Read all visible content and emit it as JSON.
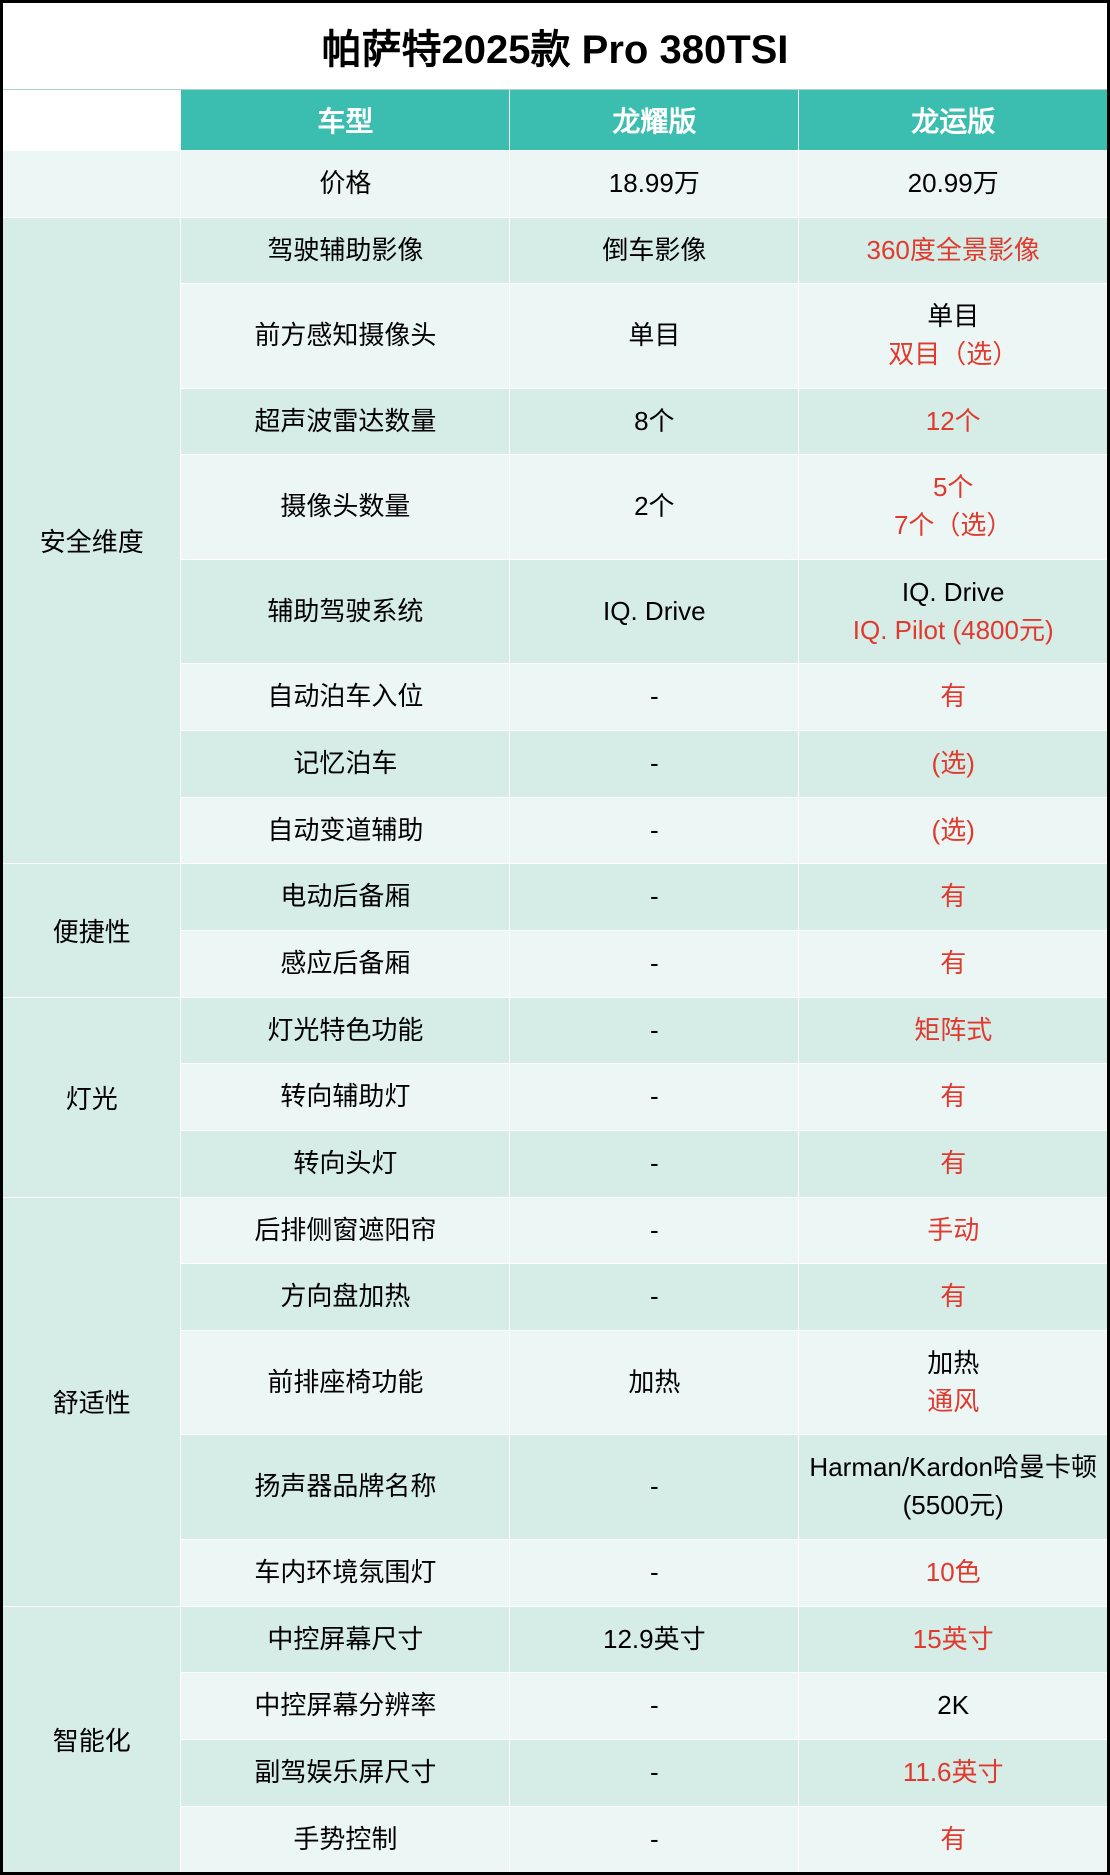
{
  "title": "帕萨特2025款 Pro 380TSI",
  "colors": {
    "header_bg": "#3bbeb0",
    "header_text": "#ffffff",
    "stripe_light": "#ecf6f4",
    "stripe_dark": "#d6ece7",
    "highlight_text": "#e03a2f",
    "border": "#000000"
  },
  "headers": {
    "category": "",
    "feature": "车型",
    "variant1": "龙耀版",
    "variant2": "龙运版"
  },
  "price_row": {
    "feature": "价格",
    "v1": [
      {
        "text": "18.99万",
        "highlight": false
      }
    ],
    "v2": [
      {
        "text": "20.99万",
        "highlight": false
      }
    ]
  },
  "sections": [
    {
      "category": "安全维度",
      "rows": [
        {
          "feature": "驾驶辅助影像",
          "v1": [
            {
              "text": "倒车影像",
              "highlight": false
            }
          ],
          "v2": [
            {
              "text": "360度全景影像",
              "highlight": true
            }
          ]
        },
        {
          "feature": "前方感知摄像头",
          "v1": [
            {
              "text": "单目",
              "highlight": false
            }
          ],
          "v2": [
            {
              "text": "单目",
              "highlight": false
            },
            {
              "text": "双目（选）",
              "highlight": true
            }
          ]
        },
        {
          "feature": "超声波雷达数量",
          "v1": [
            {
              "text": "8个",
              "highlight": false
            }
          ],
          "v2": [
            {
              "text": "12个",
              "highlight": true
            }
          ]
        },
        {
          "feature": "摄像头数量",
          "v1": [
            {
              "text": "2个",
              "highlight": false
            }
          ],
          "v2": [
            {
              "text": "5个",
              "highlight": true
            },
            {
              "text": "7个（选）",
              "highlight": true
            }
          ]
        },
        {
          "feature": "辅助驾驶系统",
          "v1": [
            {
              "text": "IQ. Drive",
              "highlight": false
            }
          ],
          "v2": [
            {
              "text": "IQ. Drive",
              "highlight": false
            },
            {
              "text": "IQ. Pilot (4800元)",
              "highlight": true
            }
          ]
        },
        {
          "feature": "自动泊车入位",
          "v1": [
            {
              "text": "-",
              "highlight": false
            }
          ],
          "v2": [
            {
              "text": "有",
              "highlight": true
            }
          ]
        },
        {
          "feature": "记忆泊车",
          "v1": [
            {
              "text": "-",
              "highlight": false
            }
          ],
          "v2": [
            {
              "text": "(选)",
              "highlight": true
            }
          ]
        },
        {
          "feature": "自动变道辅助",
          "v1": [
            {
              "text": "-",
              "highlight": false
            }
          ],
          "v2": [
            {
              "text": "(选)",
              "highlight": true
            }
          ]
        }
      ]
    },
    {
      "category": "便捷性",
      "rows": [
        {
          "feature": "电动后备厢",
          "v1": [
            {
              "text": "-",
              "highlight": false
            }
          ],
          "v2": [
            {
              "text": "有",
              "highlight": true
            }
          ]
        },
        {
          "feature": "感应后备厢",
          "v1": [
            {
              "text": "-",
              "highlight": false
            }
          ],
          "v2": [
            {
              "text": "有",
              "highlight": true
            }
          ]
        }
      ]
    },
    {
      "category": "灯光",
      "rows": [
        {
          "feature": "灯光特色功能",
          "v1": [
            {
              "text": "-",
              "highlight": false
            }
          ],
          "v2": [
            {
              "text": "矩阵式",
              "highlight": true
            }
          ]
        },
        {
          "feature": "转向辅助灯",
          "v1": [
            {
              "text": "-",
              "highlight": false
            }
          ],
          "v2": [
            {
              "text": "有",
              "highlight": true
            }
          ]
        },
        {
          "feature": "转向头灯",
          "v1": [
            {
              "text": "-",
              "highlight": false
            }
          ],
          "v2": [
            {
              "text": "有",
              "highlight": true
            }
          ]
        }
      ]
    },
    {
      "category": "舒适性",
      "rows": [
        {
          "feature": "后排侧窗遮阳帘",
          "v1": [
            {
              "text": "-",
              "highlight": false
            }
          ],
          "v2": [
            {
              "text": "手动",
              "highlight": true
            }
          ]
        },
        {
          "feature": "方向盘加热",
          "v1": [
            {
              "text": "-",
              "highlight": false
            }
          ],
          "v2": [
            {
              "text": "有",
              "highlight": true
            }
          ]
        },
        {
          "feature": "前排座椅功能",
          "v1": [
            {
              "text": "加热",
              "highlight": false
            }
          ],
          "v2": [
            {
              "text": "加热",
              "highlight": false
            },
            {
              "text": "通风",
              "highlight": true
            }
          ]
        },
        {
          "feature": "扬声器品牌名称",
          "v1": [
            {
              "text": "-",
              "highlight": false
            }
          ],
          "v2": [
            {
              "text": "Harman/Kardon哈曼卡顿 (5500元)",
              "highlight": false
            }
          ]
        },
        {
          "feature": "车内环境氛围灯",
          "v1": [
            {
              "text": "-",
              "highlight": false
            }
          ],
          "v2": [
            {
              "text": "10色",
              "highlight": true
            }
          ]
        }
      ]
    },
    {
      "category": "智能化",
      "rows": [
        {
          "feature": "中控屏幕尺寸",
          "v1": [
            {
              "text": "12.9英寸",
              "highlight": false
            }
          ],
          "v2": [
            {
              "text": "15英寸",
              "highlight": true
            }
          ]
        },
        {
          "feature": "中控屏幕分辨率",
          "v1": [
            {
              "text": "-",
              "highlight": false
            }
          ],
          "v2": [
            {
              "text": "2K",
              "highlight": false
            }
          ]
        },
        {
          "feature": "副驾娱乐屏尺寸",
          "v1": [
            {
              "text": "-",
              "highlight": false
            }
          ],
          "v2": [
            {
              "text": "11.6英寸",
              "highlight": true
            }
          ]
        },
        {
          "feature": "手势控制",
          "v1": [
            {
              "text": "-",
              "highlight": false
            }
          ],
          "v2": [
            {
              "text": "有",
              "highlight": true
            }
          ]
        }
      ]
    }
  ]
}
